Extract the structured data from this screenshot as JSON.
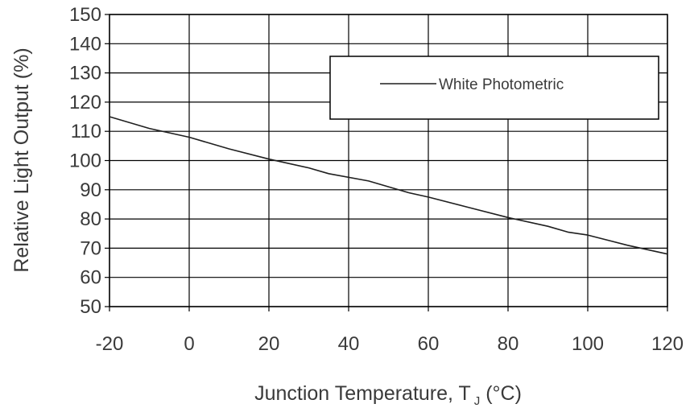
{
  "chart_data": {
    "type": "line",
    "xlabel": "Junction Temperature, T",
    "xlabel_subscript": "J",
    "xlabel_suffix": " (°C)",
    "ylabel": "Relative Light Output (%)",
    "xlim": [
      -20,
      120
    ],
    "ylim": [
      50,
      150
    ],
    "x_ticks": [
      -20,
      0,
      20,
      40,
      60,
      80,
      100,
      120
    ],
    "y_ticks": [
      50,
      60,
      70,
      80,
      90,
      100,
      110,
      120,
      130,
      140,
      150
    ],
    "grid": true,
    "legend_position": "top-right",
    "series": [
      {
        "name": "White Photometric",
        "color": "#1f1f1f",
        "x": [
          -20,
          -10,
          0,
          10,
          20,
          30,
          35,
          45,
          55,
          60,
          70,
          80,
          90,
          95,
          100,
          110,
          120
        ],
        "y": [
          115,
          111,
          108,
          104,
          100.5,
          97.5,
          95.5,
          93,
          89,
          87.5,
          84,
          80.5,
          77.5,
          75.5,
          74.5,
          71,
          68
        ]
      }
    ]
  }
}
